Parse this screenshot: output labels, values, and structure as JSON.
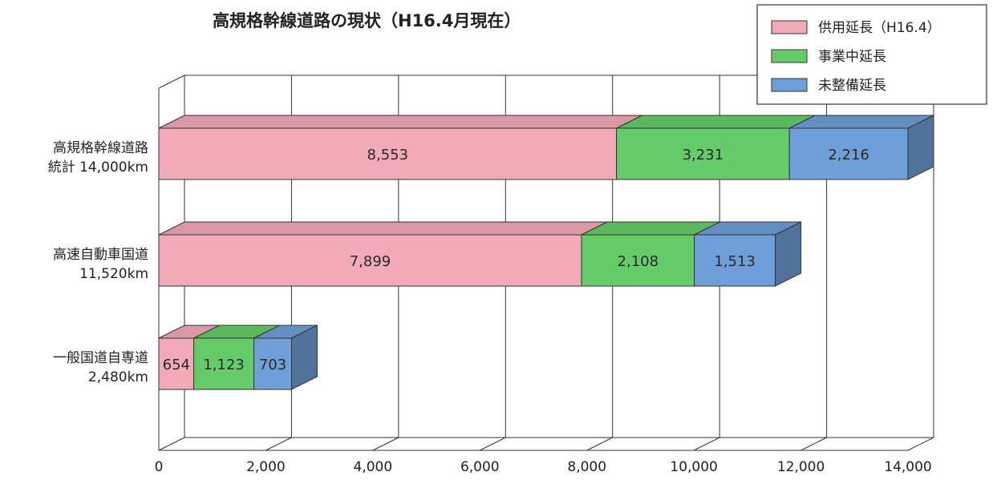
{
  "chart_data": {
    "type": "bar",
    "orientation": "horizontal",
    "stacked": true,
    "title": "高規格幹線道路の現状（H16.4月現在）",
    "categories": [
      {
        "name": "高規格幹線道路",
        "total": "統計 14,000km"
      },
      {
        "name": "高速自動車国道",
        "total": "11,520km"
      },
      {
        "name": "一般国道自専道",
        "total": "2,480km"
      }
    ],
    "series": [
      {
        "name": "供用延長（H16.4）",
        "color": "#f2a9b8",
        "values": [
          8553,
          7899,
          654
        ],
        "labels": [
          "8,553",
          "7,899",
          "654"
        ]
      },
      {
        "name": "事業中延長",
        "color": "#66cc6a",
        "values": [
          3231,
          2108,
          1123
        ],
        "labels": [
          "3,231",
          "2,108",
          "1,123"
        ]
      },
      {
        "name": "未整備延長",
        "color": "#6f9fd8",
        "values": [
          2216,
          1513,
          703
        ],
        "labels": [
          "2,216",
          "1,513",
          "703"
        ]
      }
    ],
    "xlim": [
      0,
      14000
    ],
    "xticks": [
      "0",
      "2,000",
      "4,000",
      "6,000",
      "8,000",
      "10,000",
      "12,000",
      "14,000"
    ],
    "grid": true,
    "legend_position": "top-right"
  }
}
